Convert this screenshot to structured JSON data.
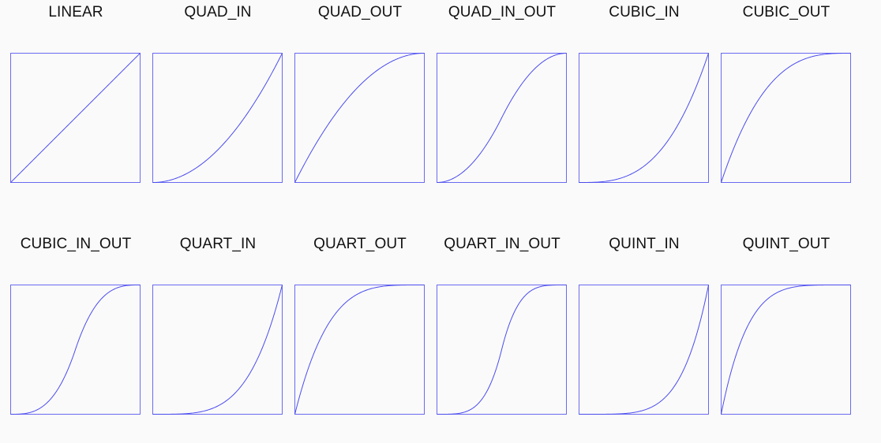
{
  "colors": {
    "background": "#fafafa",
    "curve": "#4b4bf0",
    "frame": "#6a6af2",
    "label": "#111111"
  },
  "easings": [
    {
      "label": "LINEAR",
      "function": "linear"
    },
    {
      "label": "QUAD_IN",
      "function": "quad_in"
    },
    {
      "label": "QUAD_OUT",
      "function": "quad_out"
    },
    {
      "label": "QUAD_IN_OUT",
      "function": "quad_in_out"
    },
    {
      "label": "CUBIC_IN",
      "function": "cubic_in"
    },
    {
      "label": "CUBIC_OUT",
      "function": "cubic_out"
    },
    {
      "label": "CUBIC_IN_OUT",
      "function": "cubic_in_out"
    },
    {
      "label": "QUART_IN",
      "function": "quart_in"
    },
    {
      "label": "QUART_OUT",
      "function": "quart_out"
    },
    {
      "label": "QUART_IN_OUT",
      "function": "quart_in_out"
    },
    {
      "label": "QUINT_IN",
      "function": "quint_in"
    },
    {
      "label": "QUINT_OUT",
      "function": "quint_out"
    }
  ]
}
